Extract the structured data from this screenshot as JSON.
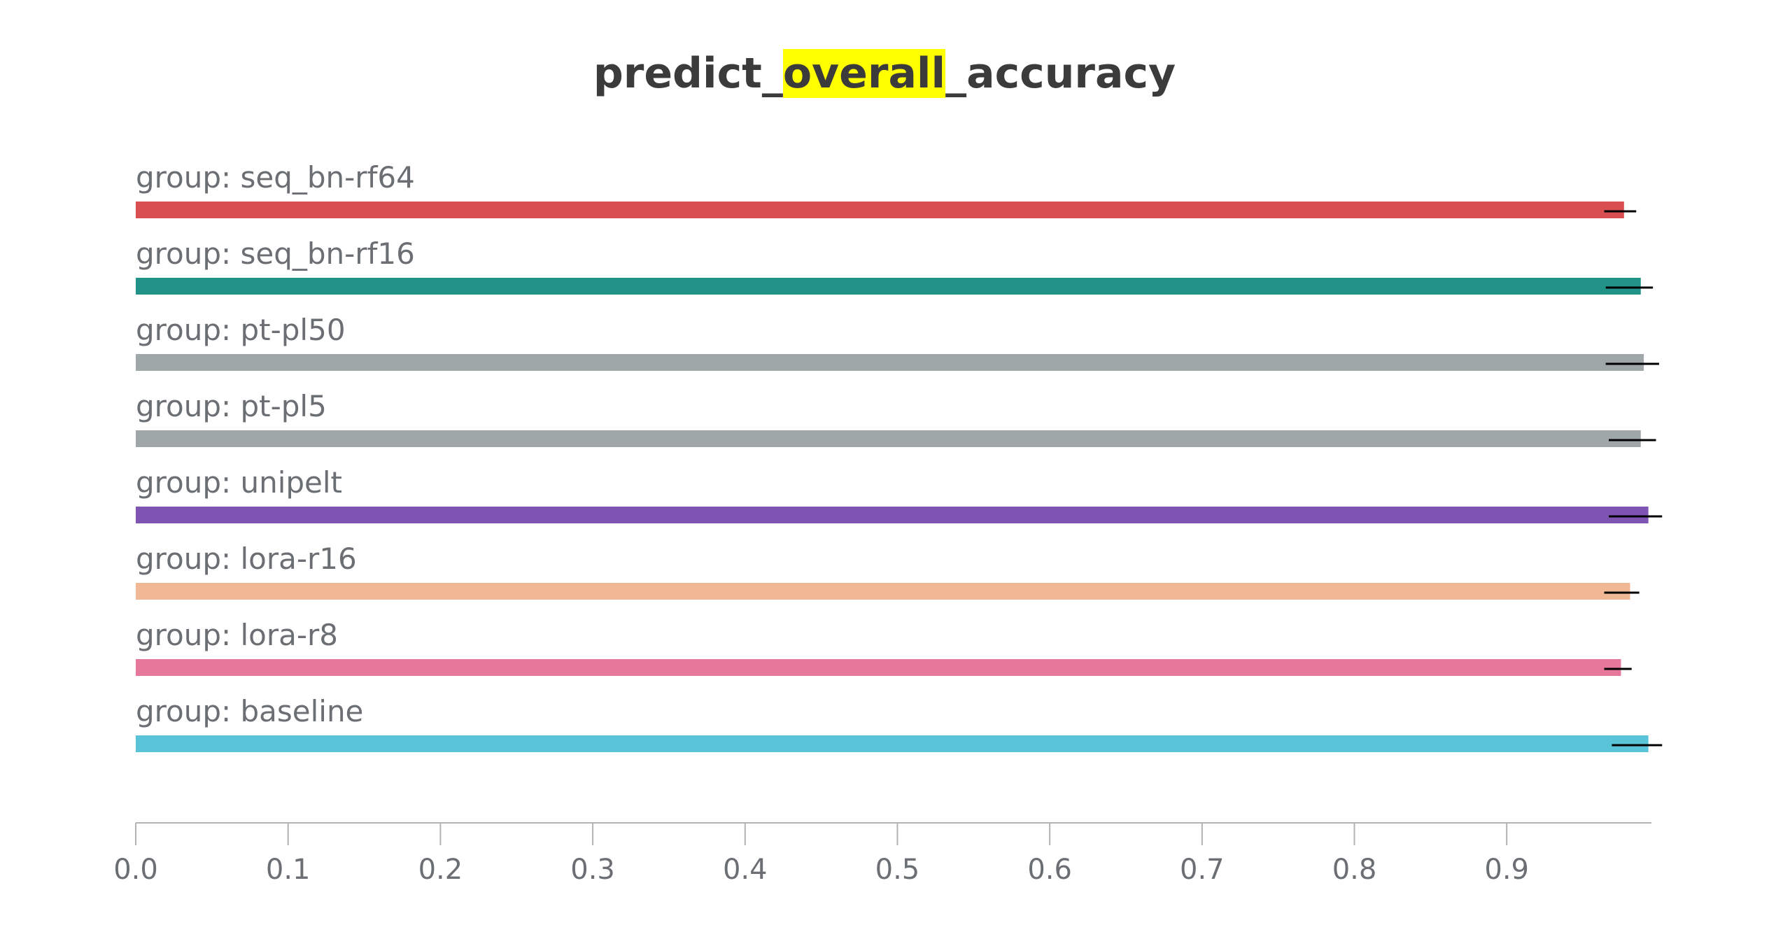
{
  "chart_data": {
    "type": "bar",
    "orientation": "horizontal",
    "title": {
      "prefix": "predict_",
      "highlight": "overall",
      "suffix": "_accuracy",
      "highlight_color": "#ffff00"
    },
    "categories": [
      "group: seq_bn-rf64",
      "group: seq_bn-rf16",
      "group: pt-pl50",
      "group: pt-pl5",
      "group: unipelt",
      "group: lora-r16",
      "group: lora-r8",
      "group: baseline"
    ],
    "values": [
      0.977,
      0.988,
      0.99,
      0.988,
      0.993,
      0.981,
      0.975,
      0.993
    ],
    "error_low": [
      0.964,
      0.965,
      0.965,
      0.967,
      0.967,
      0.964,
      0.964,
      0.969
    ],
    "error_high": [
      0.985,
      0.996,
      1.0,
      0.998,
      1.002,
      0.987,
      0.982,
      1.002
    ],
    "colors": [
      "#d94f4f",
      "#229487",
      "#a0a7a9",
      "#a0a7a9",
      "#7e55b3",
      "#f0b894",
      "#e7789c",
      "#59c3d8"
    ],
    "xlim": [
      0,
      0.995
    ],
    "xticks": [
      0.0,
      0.1,
      0.2,
      0.3,
      0.4,
      0.5,
      0.6,
      0.7,
      0.8,
      0.9
    ],
    "xtick_labels": [
      "0.0",
      "0.1",
      "0.2",
      "0.3",
      "0.4",
      "0.5",
      "0.6",
      "0.7",
      "0.8",
      "0.9"
    ],
    "xlabel": "",
    "ylabel": "",
    "grid": false,
    "legend": "none"
  }
}
